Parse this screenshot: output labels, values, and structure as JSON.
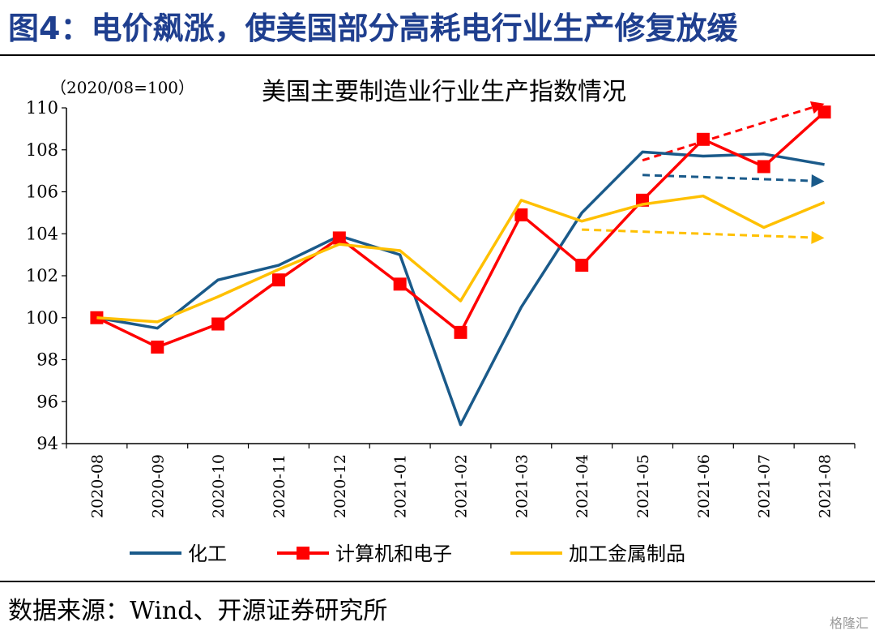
{
  "figure_title": "图4：电价飙涨，使美国部分高耗电行业生产修复放缓",
  "source_note": "数据来源：Wind、开源证券研究所",
  "watermark": "格隆汇",
  "chart_data": {
    "type": "line",
    "title": "美国主要制造业行业生产指数情况",
    "unit_note": "（2020/08=100）",
    "categories": [
      "2020-08",
      "2020-09",
      "2020-10",
      "2020-11",
      "2020-12",
      "2021-01",
      "2021-02",
      "2021-03",
      "2021-04",
      "2021-05",
      "2021-06",
      "2021-07",
      "2021-08"
    ],
    "ylim": [
      94,
      110
    ],
    "yticks": [
      94,
      96,
      98,
      100,
      102,
      104,
      106,
      108,
      110
    ],
    "grid": false,
    "legend_position": "bottom",
    "series": [
      {
        "name": "化工",
        "color": "#1a5a8a",
        "marker": "none",
        "values": [
          100.0,
          99.5,
          101.8,
          102.5,
          103.9,
          103.0,
          94.9,
          100.5,
          105.0,
          107.9,
          107.7,
          107.8,
          107.3
        ]
      },
      {
        "name": "计算机和电子",
        "color": "#ff0000",
        "marker": "square",
        "values": [
          100.0,
          98.6,
          99.7,
          101.8,
          103.8,
          101.6,
          99.3,
          104.9,
          102.5,
          105.6,
          108.5,
          107.2,
          109.8
        ]
      },
      {
        "name": "加工金属制品",
        "color": "#ffc000",
        "marker": "none",
        "values": [
          100.0,
          99.8,
          101.0,
          102.3,
          103.5,
          103.2,
          100.8,
          105.6,
          104.6,
          105.4,
          105.8,
          104.3,
          105.5
        ]
      }
    ],
    "trend_arrows": [
      {
        "series": "计算机和电子",
        "color": "#ff0000",
        "from": {
          "x": "2021-05",
          "y": 107.5
        },
        "to": {
          "x": "2021-08",
          "y": 110.2
        }
      },
      {
        "series": "化工",
        "color": "#1a5a8a",
        "from": {
          "x": "2021-05",
          "y": 106.8
        },
        "to": {
          "x": "2021-08",
          "y": 106.5
        }
      },
      {
        "series": "加工金属制品",
        "color": "#ffc000",
        "from": {
          "x": "2021-04",
          "y": 104.2
        },
        "to": {
          "x": "2021-08",
          "y": 103.8
        }
      }
    ]
  }
}
